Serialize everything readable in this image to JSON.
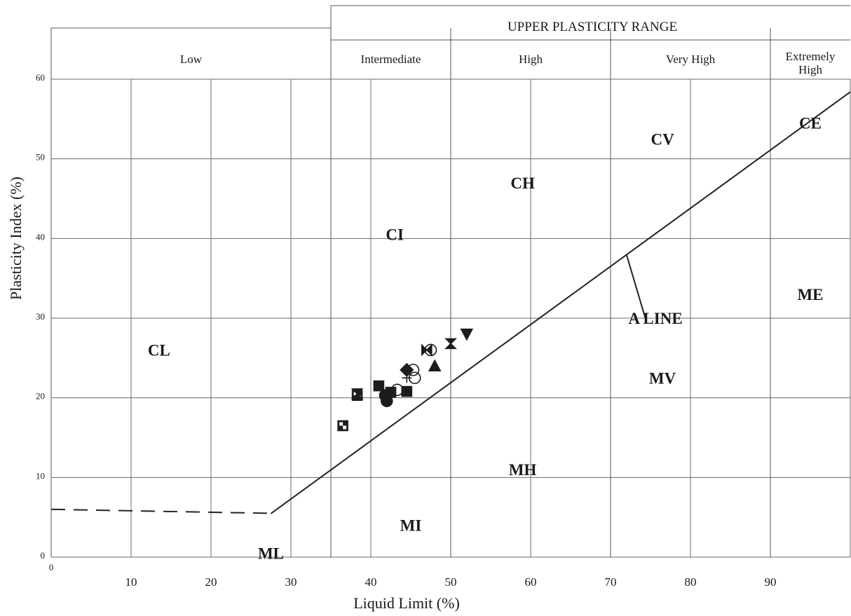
{
  "chart_data": {
    "type": "scatter",
    "xlabel": "Liquid Limit (%)",
    "ylabel": "Plasticity Index (%)",
    "xlim": [
      0,
      100
    ],
    "ylim": [
      0,
      60
    ],
    "x_ticks": [
      "0",
      "10",
      "20",
      "30",
      "40",
      "50",
      "60",
      "70",
      "80",
      "90"
    ],
    "y_ticks": [
      "0",
      "10",
      "20",
      "30",
      "40",
      "50",
      "60"
    ],
    "grid": true,
    "upper_range_label": "UPPER PLASTICITY RANGE",
    "bands": [
      {
        "label": "Low",
        "from": 0,
        "to": 35
      },
      {
        "label": "Intermediate",
        "from": 35,
        "to": 50
      },
      {
        "label": "High",
        "from": 50,
        "to": 70
      },
      {
        "label": "Very High",
        "from": 70,
        "to": 90
      },
      {
        "label": "Extremely High",
        "lines": [
          "Extremely",
          "High"
        ],
        "from": 90,
        "to": 100
      }
    ],
    "zones": [
      {
        "label": "CL",
        "x": 13.5,
        "y": 26
      },
      {
        "label": "CI",
        "x": 43,
        "y": 40.5
      },
      {
        "label": "CH",
        "x": 59,
        "y": 47
      },
      {
        "label": "CV",
        "x": 76.5,
        "y": 52.5
      },
      {
        "label": "CE",
        "x": 95,
        "y": 54.5
      },
      {
        "label": "ME",
        "x": 95,
        "y": 33
      },
      {
        "label": "MV",
        "x": 76.5,
        "y": 22.5
      },
      {
        "label": "MH",
        "x": 59,
        "y": 11
      },
      {
        "label": "MI",
        "x": 45,
        "y": 4
      },
      {
        "label": "ML",
        "x": 27.5,
        "y": 0.5
      }
    ],
    "a_line_label": "A LINE",
    "a_line": {
      "start_x": 27.5,
      "end_x": 100,
      "slope": 0.73,
      "offset": 20
    },
    "a_line_dashed": {
      "x": [
        0,
        27.5
      ],
      "y": [
        6,
        5.5
      ]
    },
    "series": [
      {
        "marker": "checker-square",
        "points": [
          [
            36.5,
            16.5
          ],
          [
            38.3,
            20.3
          ]
        ]
      },
      {
        "marker": "square",
        "points": [
          [
            41,
            21.5
          ],
          [
            42.5,
            20.7
          ],
          [
            44.5,
            20.8
          ]
        ]
      },
      {
        "marker": "circle",
        "points": [
          [
            42,
            19.6
          ],
          [
            41.8,
            20.3
          ]
        ]
      },
      {
        "marker": "open-circle",
        "points": [
          [
            43.3,
            21
          ],
          [
            45.5,
            22.5
          ],
          [
            45.3,
            23.5
          ],
          [
            47.5,
            26
          ]
        ]
      },
      {
        "marker": "diamond",
        "points": [
          [
            44.5,
            23.5
          ]
        ]
      },
      {
        "marker": "hourglass",
        "points": [
          [
            38.3,
            20.5
          ],
          [
            50,
            26.8
          ]
        ]
      },
      {
        "marker": "triangle",
        "points": [
          [
            48,
            24
          ]
        ]
      },
      {
        "marker": "triangle-down",
        "points": [
          [
            52,
            28
          ]
        ]
      },
      {
        "marker": "bowtie",
        "points": [
          [
            47,
            26
          ]
        ]
      },
      {
        "marker": "cross",
        "points": [
          [
            41.5,
            21
          ],
          [
            44.5,
            22.5
          ]
        ]
      }
    ]
  }
}
